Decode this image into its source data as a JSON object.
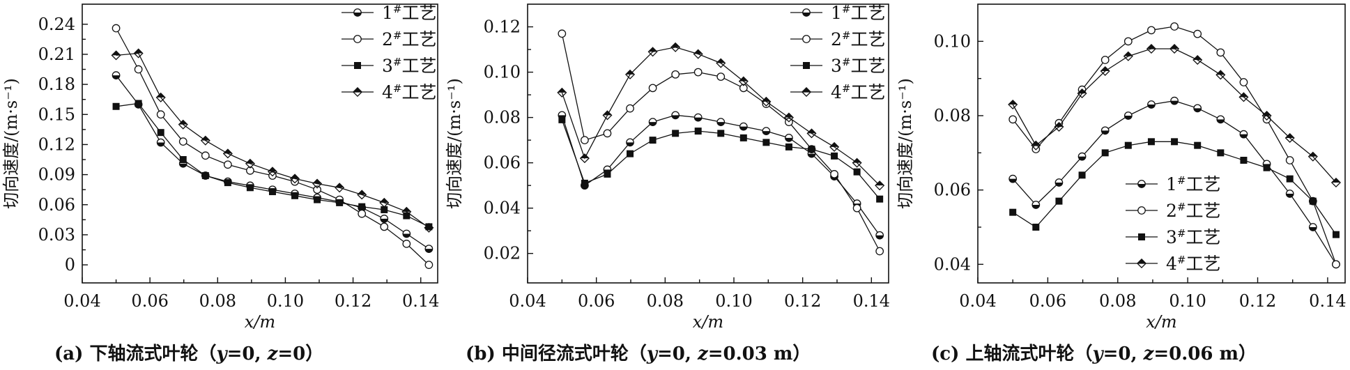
{
  "chart_data": [
    {
      "type": "line",
      "caption": "(a) 下轴流式叶轮（y=0, z=0）",
      "xlabel": "x/m",
      "ylabel": "切向速度/(m·s⁻¹)",
      "xlim": [
        0.04,
        0.145
      ],
      "ylim": [
        -0.018,
        0.26
      ],
      "xticks": [
        0.04,
        0.06,
        0.08,
        0.1,
        0.12,
        0.14
      ],
      "xtick_labels": [
        "0.04",
        "0.06",
        "0.08",
        "0.10",
        "0.12",
        "0.14"
      ],
      "yticks": [
        0,
        0.03,
        0.06,
        0.09,
        0.12,
        0.15,
        0.18,
        0.21,
        0.24
      ],
      "ytick_labels": [
        "0",
        "0.03",
        "0.06",
        "0.09",
        "0.12",
        "0.15",
        "0.18",
        "0.21",
        "0.24"
      ],
      "legend_position": "top-right",
      "x": [
        0.05,
        0.0566,
        0.0632,
        0.0698,
        0.0764,
        0.083,
        0.0896,
        0.0962,
        0.1028,
        0.1094,
        0.116,
        0.1226,
        0.1292,
        0.1358,
        0.1424
      ],
      "series": [
        {
          "name": "1#工艺",
          "marker": "circle-half",
          "values": [
            0.189,
            0.16,
            0.122,
            0.101,
            0.089,
            0.083,
            0.079,
            0.075,
            0.071,
            0.067,
            0.063,
            0.057,
            0.046,
            0.031,
            0.016
          ]
        },
        {
          "name": "2#工艺",
          "marker": "circle-open",
          "values": [
            0.236,
            0.195,
            0.15,
            0.123,
            0.109,
            0.1,
            0.094,
            0.089,
            0.083,
            0.075,
            0.065,
            0.051,
            0.038,
            0.021,
            0.0
          ]
        },
        {
          "name": "3#工艺",
          "marker": "square",
          "values": [
            0.158,
            0.161,
            0.132,
            0.105,
            0.089,
            0.082,
            0.077,
            0.073,
            0.069,
            0.065,
            0.062,
            0.058,
            0.055,
            0.049,
            0.038
          ]
        },
        {
          "name": "4#工艺",
          "marker": "diamond-half",
          "values": [
            0.209,
            0.211,
            0.167,
            0.14,
            0.124,
            0.111,
            0.101,
            0.093,
            0.086,
            0.081,
            0.077,
            0.07,
            0.062,
            0.053,
            0.037
          ]
        }
      ]
    },
    {
      "type": "line",
      "caption": "(b) 中间径流式叶轮（y=0, z=0.03 m）",
      "xlabel": "x/m",
      "ylabel": "切向速度/(m·s⁻¹)",
      "xlim": [
        0.04,
        0.145
      ],
      "ylim": [
        0.007,
        0.13
      ],
      "xticks": [
        0.04,
        0.06,
        0.08,
        0.1,
        0.12,
        0.14
      ],
      "xtick_labels": [
        "0.04",
        "0.06",
        "0.08",
        "0.10",
        "0.12",
        "0.14"
      ],
      "yticks": [
        0.02,
        0.04,
        0.06,
        0.08,
        0.1,
        0.12
      ],
      "ytick_labels": [
        "0.02",
        "0.04",
        "0.06",
        "0.08",
        "0.10",
        "0.12"
      ],
      "legend_position": "top-right",
      "x": [
        0.05,
        0.0566,
        0.0632,
        0.0698,
        0.0764,
        0.083,
        0.0896,
        0.0962,
        0.1028,
        0.1094,
        0.116,
        0.1226,
        0.1292,
        0.1358,
        0.1424
      ],
      "series": [
        {
          "name": "1#工艺",
          "marker": "circle-half",
          "values": [
            0.081,
            0.05,
            0.057,
            0.069,
            0.078,
            0.081,
            0.08,
            0.078,
            0.076,
            0.074,
            0.071,
            0.064,
            0.054,
            0.042,
            0.028
          ]
        },
        {
          "name": "2#工艺",
          "marker": "circle-open",
          "values": [
            0.117,
            0.07,
            0.073,
            0.084,
            0.093,
            0.099,
            0.1,
            0.098,
            0.093,
            0.086,
            0.078,
            0.066,
            0.055,
            0.04,
            0.021
          ]
        },
        {
          "name": "3#工艺",
          "marker": "square",
          "values": [
            0.079,
            0.051,
            0.055,
            0.064,
            0.07,
            0.073,
            0.074,
            0.073,
            0.071,
            0.069,
            0.067,
            0.066,
            0.063,
            0.056,
            0.044
          ]
        },
        {
          "name": "4#工艺",
          "marker": "diamond-half",
          "values": [
            0.091,
            0.062,
            0.081,
            0.099,
            0.109,
            0.111,
            0.108,
            0.104,
            0.096,
            0.087,
            0.08,
            0.073,
            0.067,
            0.06,
            0.05
          ]
        }
      ]
    },
    {
      "type": "line",
      "caption": "(c) 上轴流式叶轮（y=0, z=0.06 m）",
      "xlabel": "x/m",
      "ylabel": "切向速度/(m·s⁻¹)",
      "xlim": [
        0.04,
        0.145
      ],
      "ylim": [
        0.035,
        0.11
      ],
      "xticks": [
        0.04,
        0.06,
        0.08,
        0.1,
        0.12,
        0.14
      ],
      "xtick_labels": [
        "0.04",
        "0.06",
        "0.08",
        "0.10",
        "0.12",
        "0.14"
      ],
      "yticks": [
        0.04,
        0.06,
        0.08,
        0.1
      ],
      "ytick_labels": [
        "0.04",
        "0.06",
        "0.08",
        "0.10"
      ],
      "legend_position": "lower-center",
      "x": [
        0.05,
        0.0566,
        0.0632,
        0.0698,
        0.0764,
        0.083,
        0.0896,
        0.0962,
        0.1028,
        0.1094,
        0.116,
        0.1226,
        0.1292,
        0.1358,
        0.1424
      ],
      "series": [
        {
          "name": "1#工艺",
          "marker": "circle-half",
          "values": [
            0.063,
            0.056,
            0.062,
            0.069,
            0.076,
            0.08,
            0.083,
            0.084,
            0.082,
            0.079,
            0.075,
            0.067,
            0.059,
            0.05,
            0.04
          ]
        },
        {
          "name": "2#工艺",
          "marker": "circle-open",
          "values": [
            0.079,
            0.071,
            0.078,
            0.087,
            0.095,
            0.1,
            0.103,
            0.104,
            0.102,
            0.097,
            0.089,
            0.079,
            0.068,
            0.057,
            0.04
          ]
        },
        {
          "name": "3#工艺",
          "marker": "square",
          "values": [
            0.054,
            0.05,
            0.057,
            0.064,
            0.07,
            0.072,
            0.073,
            0.073,
            0.072,
            0.07,
            0.068,
            0.066,
            0.063,
            0.057,
            0.048
          ]
        },
        {
          "name": "4#工艺",
          "marker": "diamond-half",
          "values": [
            0.083,
            0.072,
            0.077,
            0.086,
            0.092,
            0.096,
            0.098,
            0.098,
            0.095,
            0.091,
            0.085,
            0.08,
            0.074,
            0.069,
            0.062
          ]
        }
      ]
    }
  ]
}
